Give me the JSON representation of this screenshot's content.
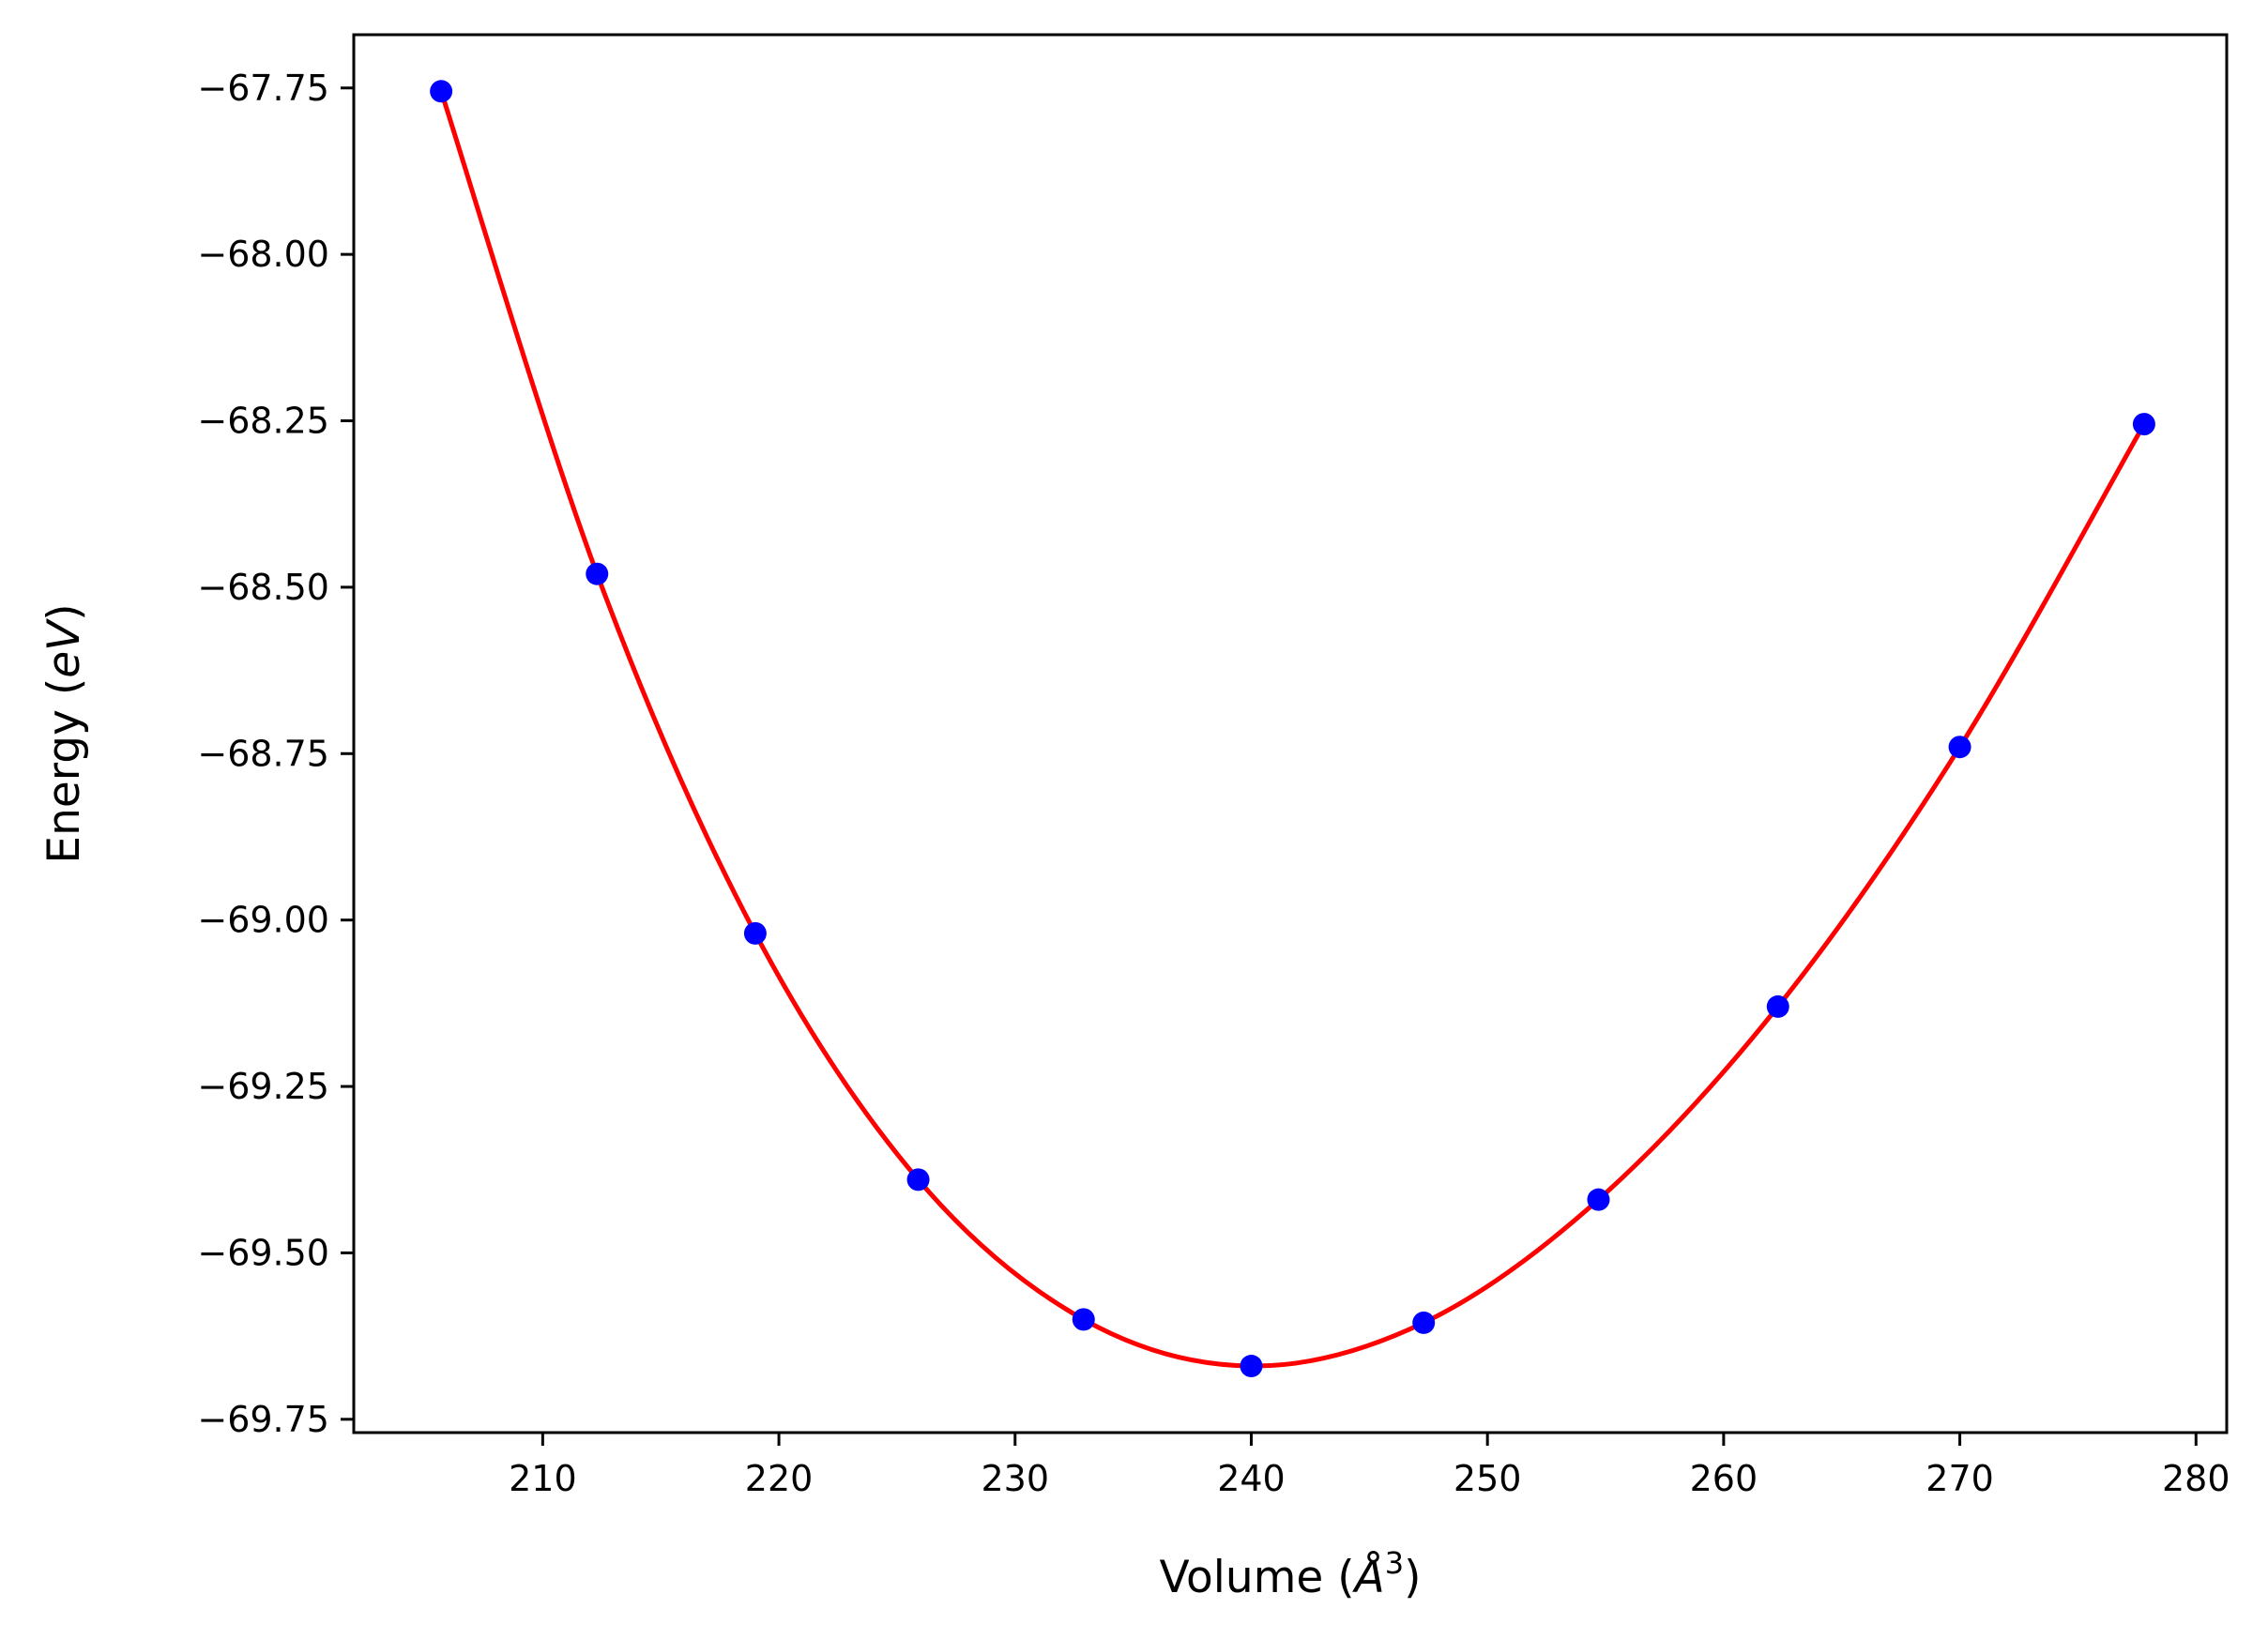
{
  "chart_data": {
    "type": "scatter",
    "title": "",
    "xlabel": {
      "prefix": "Volume (",
      "symbol": "Å",
      "sup": "3",
      "suffix": ")"
    },
    "ylabel": {
      "prefix": "Energy (",
      "symbol": "eV",
      "suffix": ")"
    },
    "xlim": [
      202,
      281.3
    ],
    "ylim": [
      -69.77,
      -67.67
    ],
    "grid": false,
    "legend": "none",
    "xticks": [
      210,
      220,
      230,
      240,
      250,
      260,
      270,
      280
    ],
    "xtick_labels": [
      "210",
      "220",
      "230",
      "240",
      "250",
      "260",
      "270",
      "280"
    ],
    "yticks": [
      -67.75,
      -68.0,
      -68.25,
      -68.5,
      -68.75,
      -69.0,
      -69.25,
      -69.5,
      -69.75
    ],
    "ytick_labels": [
      "−67.75",
      "−68.00",
      "−68.25",
      "−68.50",
      "−68.75",
      "−69.00",
      "−69.25",
      "−69.50",
      "−69.75"
    ],
    "series": [
      {
        "kind": "points",
        "color": "#0000ff",
        "x": [
          205.7,
          212.3,
          219.0,
          225.9,
          232.9,
          240.0,
          247.3,
          254.7,
          262.3,
          270.0,
          277.8
        ],
        "y": [
          -67.755,
          -68.48,
          -69.02,
          -69.39,
          -69.6,
          -69.67,
          -69.605,
          -69.42,
          -69.13,
          -68.74,
          -68.255
        ]
      },
      {
        "kind": "line",
        "color": "#ff0000",
        "x": [
          205.7,
          212.3,
          219.0,
          225.9,
          232.9,
          240.0,
          247.3,
          254.7,
          262.3,
          270.0,
          277.8
        ],
        "y": [
          -67.755,
          -68.48,
          -69.02,
          -69.39,
          -69.6,
          -69.67,
          -69.605,
          -69.42,
          -69.13,
          -68.74,
          -68.255
        ]
      }
    ]
  }
}
